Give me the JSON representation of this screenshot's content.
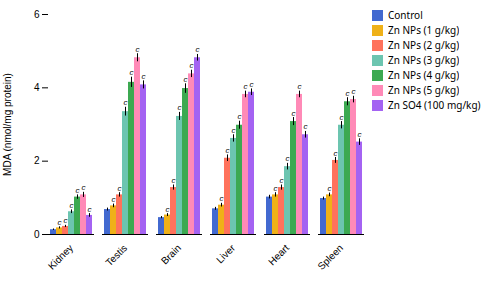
{
  "chart_data": {
    "type": "bar",
    "categories": [
      "Kidney",
      "Testis",
      "Brain",
      "Liver",
      "Heart",
      "Spleen"
    ],
    "series": [
      {
        "name": "Control",
        "values": [
          0.13,
          0.68,
          0.46,
          0.7,
          1.02,
          0.98
        ],
        "errors": [
          0.02,
          0.04,
          0.03,
          0.04,
          0.05,
          0.04
        ]
      },
      {
        "name": "Zn NPs (1 g/kg)",
        "values": [
          0.18,
          0.78,
          0.53,
          0.8,
          1.08,
          1.08
        ],
        "errors": [
          0.03,
          0.05,
          0.04,
          0.05,
          0.06,
          0.05
        ],
        "annotations": [
          "c",
          "c",
          "c",
          "c",
          "c",
          "c"
        ]
      },
      {
        "name": "Zn NPs (2 g/kg)",
        "values": [
          0.22,
          1.08,
          1.28,
          2.08,
          1.28,
          2.02
        ],
        "errors": [
          0.03,
          0.06,
          0.07,
          0.09,
          0.07,
          0.08
        ],
        "annotations": [
          "c",
          "c",
          "c",
          "c",
          "c",
          "c"
        ]
      },
      {
        "name": "Zn NPs (3 g/kg)",
        "values": [
          0.62,
          3.35,
          3.22,
          2.62,
          1.85,
          2.98
        ],
        "errors": [
          0.05,
          0.12,
          0.11,
          0.1,
          0.09,
          0.1
        ],
        "annotations": [
          "c",
          "c",
          "c",
          "c",
          "c",
          "c"
        ]
      },
      {
        "name": "Zn NPs (4 g/kg)",
        "values": [
          1.02,
          4.15,
          3.98,
          2.98,
          3.08,
          3.62
        ],
        "errors": [
          0.06,
          0.14,
          0.13,
          0.11,
          0.11,
          0.11
        ],
        "annotations": [
          "c",
          "c",
          "c",
          "c",
          "c",
          "c"
        ]
      },
      {
        "name": "Zn NPs (5 g/kg)",
        "values": [
          1.08,
          4.82,
          4.38,
          3.82,
          3.82,
          3.68
        ],
        "errors": [
          0.07,
          0.11,
          0.1,
          0.09,
          0.09,
          0.09
        ],
        "annotations": [
          "c",
          "c",
          "c",
          "c",
          "c",
          "c"
        ]
      },
      {
        "name": "Zn SO4 (100 mg/kg)",
        "values": [
          0.52,
          4.08,
          4.82,
          3.88,
          2.72,
          2.52
        ],
        "errors": [
          0.05,
          0.11,
          0.09,
          0.09,
          0.09,
          0.09
        ],
        "annotations": [
          "c",
          "c",
          "c",
          "c",
          "c",
          "c"
        ]
      }
    ],
    "ylabel": "MDA (nmol/mg protein)",
    "ylim": [
      0,
      6
    ],
    "yticks": [
      0,
      2,
      4,
      6
    ],
    "grid": false,
    "legend": "right"
  }
}
